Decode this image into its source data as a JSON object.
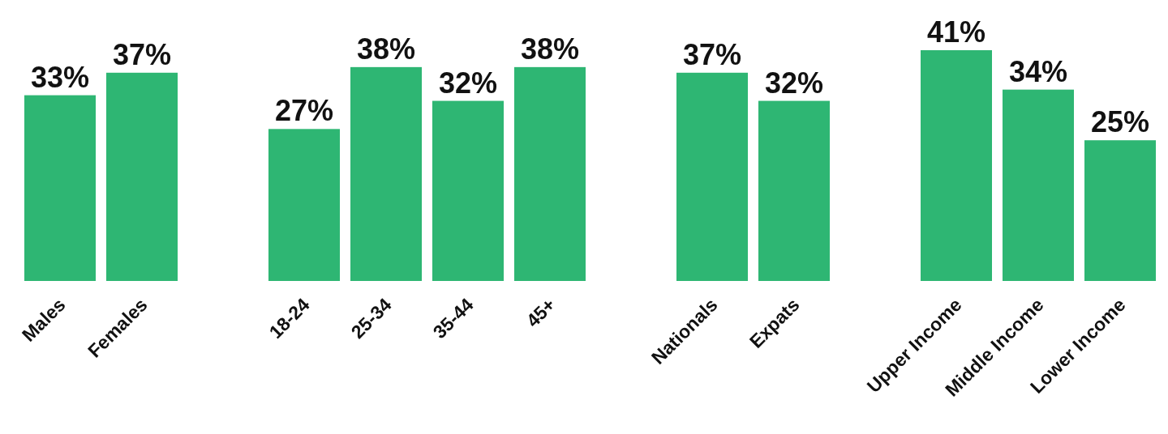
{
  "chart_data": [
    {
      "type": "bar",
      "categories": [
        "Males",
        "Females"
      ],
      "values": [
        33,
        37
      ],
      "color": "#2eb673",
      "data_labels": true,
      "value_labels": [
        "33%",
        "37%"
      ]
    },
    {
      "type": "bar",
      "categories": [
        "18-24",
        "25-34",
        "35-44",
        "45+"
      ],
      "values": [
        27,
        38,
        32,
        38
      ],
      "color": "#2eb673",
      "data_labels": true,
      "value_labels": [
        "27%",
        "38%",
        "32%",
        "38%"
      ]
    },
    {
      "type": "bar",
      "categories": [
        "Nationals",
        "Expats"
      ],
      "values": [
        37,
        32
      ],
      "color": "#2eb673",
      "data_labels": true,
      "value_labels": [
        "37%",
        "32%"
      ]
    },
    {
      "type": "bar",
      "categories": [
        "Upper Income",
        "Middle Income",
        "Lower Income"
      ],
      "values": [
        41,
        34,
        25
      ],
      "color": "#2eb673",
      "data_labels": true,
      "value_labels": [
        "41%",
        "34%",
        "25%"
      ]
    }
  ]
}
